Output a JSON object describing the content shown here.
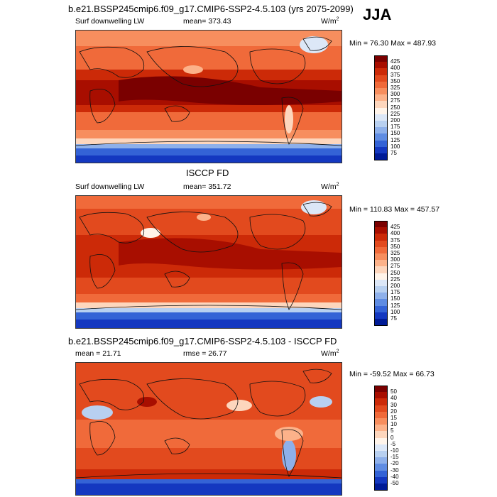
{
  "header": {
    "title": "b.e21.BSSP245cmip6.f09_g17.CMIP6-SSP2-4.5.103 (yrs 2075-2099)",
    "season": "JJA"
  },
  "panels": [
    {
      "id": "model",
      "title": "",
      "field_label": "Surf downwelling LW",
      "stat_label": "mean= 373.43",
      "stat2_label": "",
      "unit_base": "W/m",
      "unit_sup": "2",
      "range_label": "Min =  76.30 Max = 487.93",
      "colorbar": {
        "labels": [
          "425",
          "400",
          "375",
          "350",
          "325",
          "300",
          "275",
          "250",
          "225",
          "200",
          "175",
          "150",
          "125",
          "100",
          "75"
        ],
        "colors": [
          "#7a0000",
          "#a80e00",
          "#cc2a08",
          "#e24a1e",
          "#f06a3a",
          "#f78e5e",
          "#fcb28a",
          "#fdd6bd",
          "#fff4ea",
          "#dce7f7",
          "#b8d0f0",
          "#8eb0ea",
          "#5f8ce2",
          "#3463d6",
          "#1438c0",
          "#001b96"
        ]
      }
    },
    {
      "id": "obs",
      "title": "ISCCP FD",
      "field_label": "Surf downwelling LW",
      "stat_label": "mean= 351.72",
      "stat2_label": "",
      "unit_base": "W/m",
      "unit_sup": "2",
      "range_label": "Min = 110.83 Max = 457.57",
      "colorbar": {
        "labels": [
          "425",
          "400",
          "375",
          "350",
          "325",
          "300",
          "275",
          "250",
          "225",
          "200",
          "175",
          "150",
          "125",
          "100",
          "75"
        ],
        "colors": [
          "#7a0000",
          "#a80e00",
          "#cc2a08",
          "#e24a1e",
          "#f06a3a",
          "#f78e5e",
          "#fcb28a",
          "#fdd6bd",
          "#fff4ea",
          "#dce7f7",
          "#b8d0f0",
          "#8eb0ea",
          "#5f8ce2",
          "#3463d6",
          "#1438c0",
          "#001b96"
        ]
      }
    },
    {
      "id": "diff",
      "title": "b.e21.BSSP245cmip6.f09_g17.CMIP6-SSP2-4.5.103 - ISCCP FD",
      "field_label": "",
      "stat_label": "mean =  21.71",
      "stat2_label": "rmse =  26.77",
      "unit_base": "W/m",
      "unit_sup": "2",
      "range_label": "Min = -59.52 Max =  66.73",
      "colorbar": {
        "labels": [
          "50",
          "40",
          "30",
          "20",
          "15",
          "10",
          "5",
          "0",
          "-5",
          "-10",
          "-15",
          "-20",
          "-30",
          "-40",
          "-50"
        ],
        "colors": [
          "#7a0000",
          "#a80e00",
          "#cc2a08",
          "#e24a1e",
          "#f06a3a",
          "#f78e5e",
          "#fcb28a",
          "#fdd6bd",
          "#fff4ea",
          "#dce7f7",
          "#b8d0f0",
          "#8eb0ea",
          "#5f8ce2",
          "#3463d6",
          "#1438c0",
          "#001b96"
        ]
      }
    }
  ]
}
